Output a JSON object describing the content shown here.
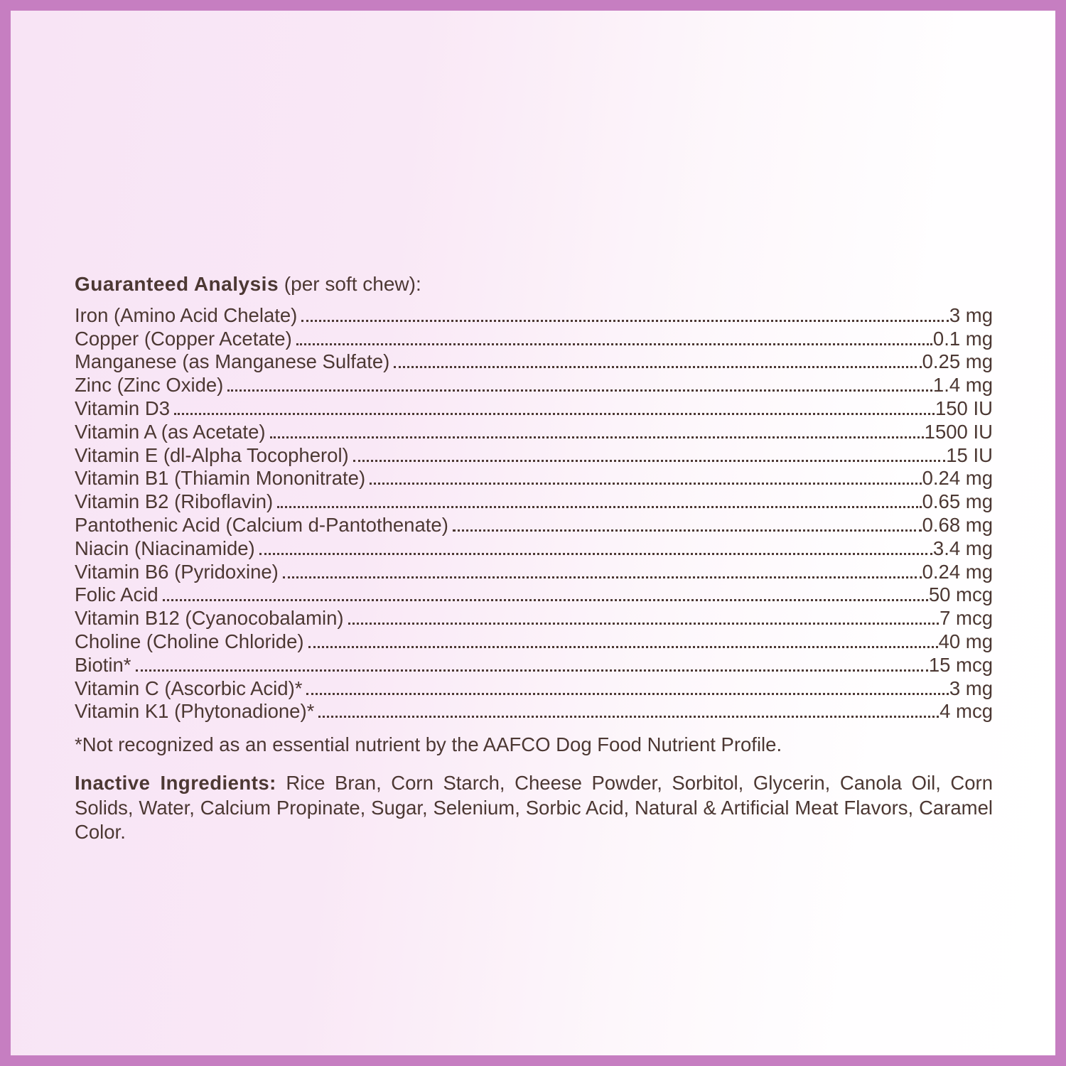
{
  "label": {
    "title_bold": "Guaranteed Analysis",
    "title_rest": " (per soft chew):",
    "rows": [
      {
        "label": "Iron (Amino Acid Chelate)",
        "value": "3 mg"
      },
      {
        "label": "Copper (Copper Acetate)",
        "value": "0.1 mg"
      },
      {
        "label": "Manganese (as Manganese Sulfate)",
        "value": "0.25 mg"
      },
      {
        "label": "Zinc  (Zinc  Oxide)",
        "value": "1.4  mg"
      },
      {
        "label": "Vitamin D3",
        "value": "150 IU"
      },
      {
        "label": "Vitamin A (as Acetate)",
        "value": "1500 IU"
      },
      {
        "label": "Vitamin E (dl-Alpha Tocopherol)",
        "value": "15 IU"
      },
      {
        "label": "Vitamin B1 (Thiamin Mononitrate)",
        "value": "0.24 mg"
      },
      {
        "label": "Vitamin B2 (Riboflavin)",
        "value": "0.65 mg"
      },
      {
        "label": "Pantothenic Acid (Calcium d-Pantothenate)",
        "value": "0.68 mg"
      },
      {
        "label": "Niacin (Niacinamide)",
        "value": "3.4 mg"
      },
      {
        "label": "Vitamin B6 (Pyridoxine)",
        "value": "0.24 mg"
      },
      {
        "label": "Folic Acid",
        "value": "50 mcg"
      },
      {
        "label": "Vitamin B12 (Cyanocobalamin)",
        "value": "7 mcg"
      },
      {
        "label": "Choline (Choline Chloride)",
        "value": "40 mg"
      },
      {
        "label": "Biotin*",
        "value": "15 mcg"
      },
      {
        "label": "Vitamin C (Ascorbic Acid)*",
        "value": "3 mg"
      },
      {
        "label": "Vitamin K1 (Phytonadione)*",
        "value": "4 mcg"
      }
    ],
    "footnote": "*Not recognized as an essential nutrient by the AAFCO Dog Food Nutrient Profile.",
    "inactive_label": "Inactive Ingredients:",
    "inactive_text": " Rice Bran, Corn Starch, Cheese Powder, Sorbitol, Glycerin, Canola Oil, Corn Solids, Water, Calcium Propinate, Sugar, Selenium, Sorbic Acid, Natural & Artificial Meat Flavors, Caramel Color.",
    "colors": {
      "frame": "#c67ec1",
      "text": "#4c3833",
      "background_pink": "#f8e4f5",
      "background_white": "#ffffff"
    }
  }
}
